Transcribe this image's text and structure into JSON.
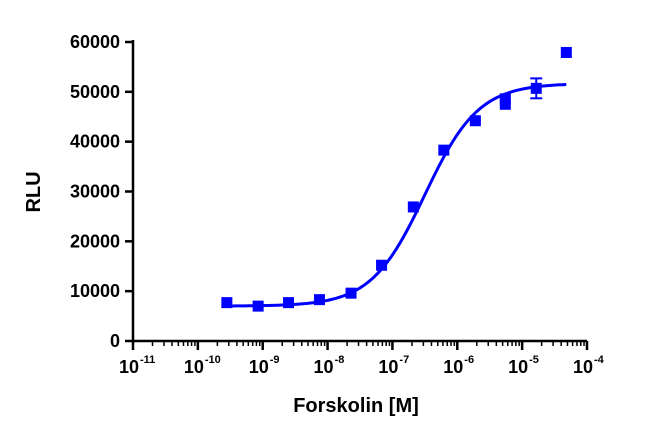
{
  "chart_data": {
    "type": "scatter",
    "title": "",
    "xlabel": "Forskolin [M]",
    "ylabel": "RLU",
    "xscale": "log",
    "xlim": [
      1e-11,
      0.0001
    ],
    "ylim": [
      0,
      60000
    ],
    "grid": false,
    "legend": "none",
    "x_tick_base": "10",
    "x_tick_exponents": [
      "-11",
      "-10",
      "-9",
      "-8",
      "-7",
      "-6",
      "-5",
      "-4"
    ],
    "y_ticks": [
      0,
      10000,
      20000,
      30000,
      40000,
      50000,
      60000
    ],
    "y_tick_labels": [
      "0",
      "10000",
      "20000",
      "30000",
      "40000",
      "50000",
      "60000"
    ],
    "series": [
      {
        "marker": "square",
        "color": "#0000ff",
        "points": [
          {
            "x": 2.8e-10,
            "y": 7700
          },
          {
            "x": 8.5e-10,
            "y": 7000
          },
          {
            "x": 2.5e-09,
            "y": 7700
          },
          {
            "x": 7.5e-09,
            "y": 8300
          },
          {
            "x": 2.3e-08,
            "y": 9600
          },
          {
            "x": 6.8e-08,
            "y": 15200
          },
          {
            "x": 2.1e-07,
            "y": 26900
          },
          {
            "x": 6.2e-07,
            "y": 38300
          },
          {
            "x": 1.9e-06,
            "y": 44200
          },
          {
            "x": 5.5e-06,
            "y": 47500
          },
          {
            "x": 5.5e-06,
            "y": 48600
          },
          {
            "x": 1.65e-05,
            "y": 50700,
            "err": 2000
          },
          {
            "x": 4.8e-05,
            "y": 57900
          }
        ]
      }
    ],
    "fit": {
      "type": "sigmoidal dose-response",
      "color": "#0000ff",
      "bottom": 7000,
      "top": 51700,
      "log_ec50": -6.5,
      "hill": 1.05,
      "x_range": [
        2.8e-10,
        4.8e-05
      ]
    }
  }
}
